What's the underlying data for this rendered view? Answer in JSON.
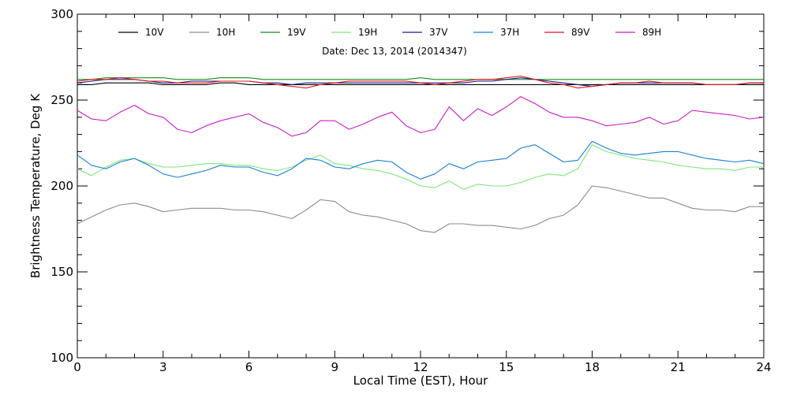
{
  "chart_data": {
    "type": "line",
    "title": "",
    "annotation": "Date: Dec 13, 2014 (2014347)",
    "xlabel": "Local Time (EST), Hour",
    "ylabel": "Brightness Temperature, Deg K",
    "xlim": [
      0,
      24
    ],
    "ylim": [
      100,
      300
    ],
    "xticks": [
      0,
      3,
      6,
      9,
      12,
      15,
      18,
      21,
      24
    ],
    "yticks": [
      100,
      150,
      200,
      250,
      300
    ],
    "grid": false,
    "legend_position": "top",
    "x": [
      0,
      0.5,
      1,
      1.5,
      2,
      2.5,
      3,
      3.5,
      4,
      4.5,
      5,
      5.5,
      6,
      6.5,
      7,
      7.5,
      8,
      8.5,
      9,
      9.5,
      10,
      10.5,
      11,
      11.5,
      12,
      12.5,
      13,
      13.5,
      14,
      14.5,
      15,
      15.5,
      16,
      16.5,
      17,
      17.5,
      18,
      18.5,
      19,
      19.5,
      20,
      20.5,
      21,
      21.5,
      22,
      22.5,
      23,
      23.5,
      24
    ],
    "series": [
      {
        "name": "10V",
        "color": "#000000",
        "values": [
          259,
          259,
          260,
          260,
          260,
          260,
          259,
          259,
          259,
          259,
          260,
          260,
          259,
          259,
          259,
          259,
          259,
          259,
          259,
          259,
          259,
          259,
          259,
          259,
          259,
          259,
          259,
          259,
          259,
          259,
          259,
          259,
          259,
          259,
          259,
          259,
          259,
          259,
          259,
          259,
          259,
          259,
          259,
          259,
          259,
          259,
          259,
          259,
          259
        ]
      },
      {
        "name": "10H",
        "color": "#8c8c8c",
        "values": [
          178,
          182,
          186,
          189,
          190,
          188,
          185,
          186,
          187,
          187,
          187,
          186,
          186,
          185,
          183,
          181,
          186,
          192,
          191,
          185,
          183,
          182,
          180,
          178,
          174,
          173,
          178,
          178,
          177,
          177,
          176,
          175,
          177,
          181,
          183,
          189,
          200,
          199,
          197,
          195,
          193,
          193,
          190,
          187,
          186,
          186,
          185,
          188,
          188
        ]
      },
      {
        "name": "19V",
        "color": "#1a8c1a",
        "values": [
          262,
          262,
          263,
          263,
          263,
          263,
          263,
          262,
          262,
          262,
          263,
          263,
          263,
          262,
          262,
          262,
          262,
          262,
          262,
          262,
          262,
          262,
          262,
          262,
          263,
          262,
          262,
          262,
          262,
          262,
          262,
          262,
          262,
          262,
          262,
          262,
          262,
          262,
          262,
          262,
          262,
          262,
          262,
          262,
          262,
          262,
          262,
          262,
          262
        ]
      },
      {
        "name": "19H",
        "color": "#7de87d",
        "values": [
          210,
          206,
          211,
          215,
          216,
          213,
          211,
          211,
          212,
          213,
          213,
          212,
          212,
          210,
          209,
          211,
          215,
          218,
          213,
          212,
          210,
          209,
          207,
          204,
          200,
          199,
          203,
          198,
          201,
          200,
          200,
          202,
          205,
          207,
          206,
          210,
          224,
          220,
          218,
          216,
          215,
          214,
          212,
          211,
          210,
          210,
          209,
          211,
          211
        ]
      },
      {
        "name": "37V",
        "color": "#1a1a8c",
        "values": [
          260,
          261,
          262,
          262,
          262,
          261,
          260,
          260,
          261,
          261,
          261,
          261,
          261,
          260,
          260,
          259,
          260,
          260,
          260,
          260,
          260,
          260,
          260,
          260,
          260,
          260,
          260,
          260,
          261,
          261,
          262,
          263,
          262,
          261,
          260,
          259,
          258,
          259,
          260,
          260,
          260,
          260,
          260,
          260,
          259,
          259,
          259,
          260,
          260
        ]
      },
      {
        "name": "37H",
        "color": "#1a7fd6",
        "values": [
          218,
          212,
          210,
          214,
          216,
          212,
          207,
          205,
          207,
          209,
          212,
          211,
          211,
          208,
          206,
          210,
          216,
          215,
          211,
          210,
          213,
          215,
          214,
          208,
          204,
          207,
          213,
          210,
          214,
          215,
          216,
          222,
          224,
          219,
          214,
          215,
          226,
          222,
          219,
          218,
          219,
          220,
          220,
          218,
          216,
          215,
          214,
          215,
          213
        ]
      },
      {
        "name": "89V",
        "color": "#e0141e",
        "values": [
          261,
          262,
          262,
          263,
          262,
          261,
          261,
          260,
          260,
          260,
          261,
          261,
          261,
          260,
          259,
          258,
          257,
          259,
          260,
          261,
          261,
          261,
          261,
          261,
          260,
          259,
          260,
          261,
          262,
          262,
          263,
          264,
          262,
          260,
          259,
          257,
          258,
          259,
          260,
          260,
          261,
          260,
          260,
          260,
          259,
          259,
          259,
          260,
          260
        ]
      },
      {
        "name": "89H",
        "color": "#c81ec8",
        "values": [
          244,
          239,
          238,
          243,
          247,
          242,
          240,
          233,
          231,
          235,
          238,
          240,
          242,
          237,
          234,
          229,
          231,
          238,
          238,
          233,
          236,
          240,
          243,
          235,
          231,
          233,
          246,
          238,
          245,
          241,
          246,
          252,
          248,
          243,
          240,
          240,
          238,
          235,
          236,
          237,
          240,
          236,
          238,
          244,
          243,
          242,
          241,
          239,
          240
        ]
      }
    ]
  }
}
